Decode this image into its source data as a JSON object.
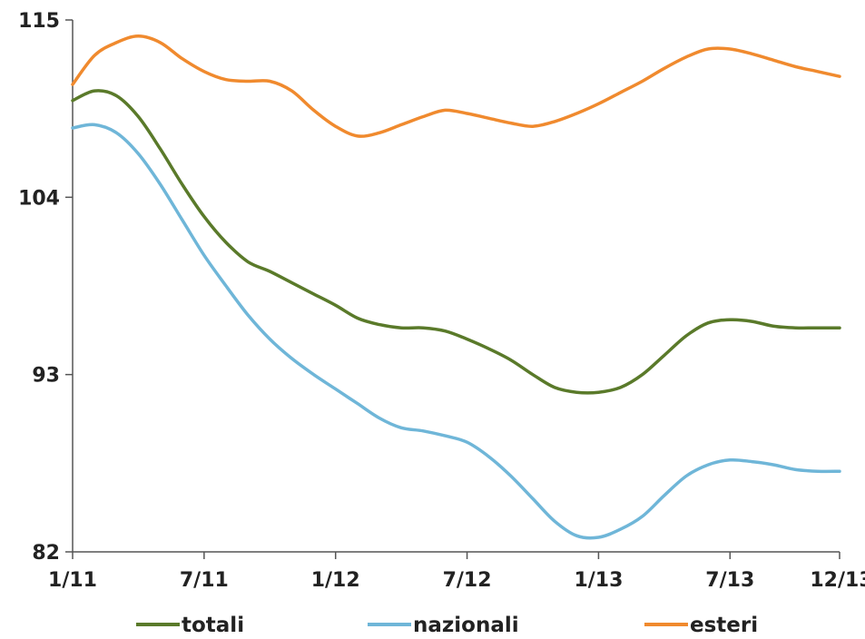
{
  "chart_data": {
    "type": "line",
    "title": "",
    "xlabel": "",
    "ylabel": "",
    "ylim": [
      82,
      115
    ],
    "y_ticks": [
      {
        "value": 82,
        "label": "82"
      },
      {
        "value": 93,
        "label": "93"
      },
      {
        "value": 104,
        "label": "104"
      },
      {
        "value": 115,
        "label": "115"
      }
    ],
    "x_ticks": [
      {
        "month": 0,
        "label": "1/11"
      },
      {
        "month": 6,
        "label": "7/11"
      },
      {
        "month": 12,
        "label": "1/12"
      },
      {
        "month": 18,
        "label": "7/12"
      },
      {
        "month": 24,
        "label": "1/13"
      },
      {
        "month": 30,
        "label": "7/13"
      },
      {
        "month": 35,
        "label": "12/13"
      }
    ],
    "x": [
      "1/11",
      "2/11",
      "3/11",
      "4/11",
      "5/11",
      "6/11",
      "7/11",
      "8/11",
      "9/11",
      "10/11",
      "11/11",
      "12/11",
      "1/12",
      "2/12",
      "3/12",
      "4/12",
      "5/12",
      "6/12",
      "7/12",
      "8/12",
      "9/12",
      "10/12",
      "11/12",
      "12/12",
      "1/13",
      "2/13",
      "3/13",
      "4/13",
      "5/13",
      "6/13",
      "7/13",
      "8/13",
      "9/13",
      "10/13",
      "11/13",
      "12/13"
    ],
    "series": [
      {
        "name": "totali",
        "color": "#5a7a2a",
        "values": [
          110.0,
          110.6,
          110.3,
          109.0,
          107.0,
          104.8,
          102.8,
          101.2,
          100.0,
          99.4,
          98.7,
          98.0,
          97.3,
          96.5,
          96.1,
          95.9,
          95.9,
          95.7,
          95.2,
          94.6,
          93.9,
          93.0,
          92.2,
          91.9,
          91.9,
          92.2,
          93.0,
          94.2,
          95.4,
          96.2,
          96.4,
          96.3,
          96.0,
          95.9,
          95.9,
          95.9
        ]
      },
      {
        "name": "nazionali",
        "color": "#6fb6d8",
        "values": [
          108.3,
          108.5,
          108.0,
          106.7,
          104.8,
          102.6,
          100.4,
          98.5,
          96.7,
          95.2,
          94.0,
          93.0,
          92.1,
          91.2,
          90.3,
          89.7,
          89.5,
          89.2,
          88.8,
          87.9,
          86.7,
          85.3,
          83.9,
          83.0,
          82.9,
          83.4,
          84.2,
          85.5,
          86.7,
          87.4,
          87.7,
          87.6,
          87.4,
          87.1,
          87.0,
          87.0
        ]
      },
      {
        "name": "esteri",
        "color": "#f08a2e",
        "values": [
          111.0,
          112.8,
          113.6,
          114.0,
          113.6,
          112.6,
          111.8,
          111.3,
          111.2,
          111.2,
          110.6,
          109.4,
          108.4,
          107.8,
          108.0,
          108.5,
          109.0,
          109.4,
          109.2,
          108.9,
          108.6,
          108.4,
          108.7,
          109.2,
          109.8,
          110.5,
          111.2,
          112.0,
          112.7,
          113.2,
          113.2,
          112.9,
          112.5,
          112.1,
          111.8,
          111.5
        ]
      }
    ],
    "legend": "bottom",
    "grid": false
  }
}
